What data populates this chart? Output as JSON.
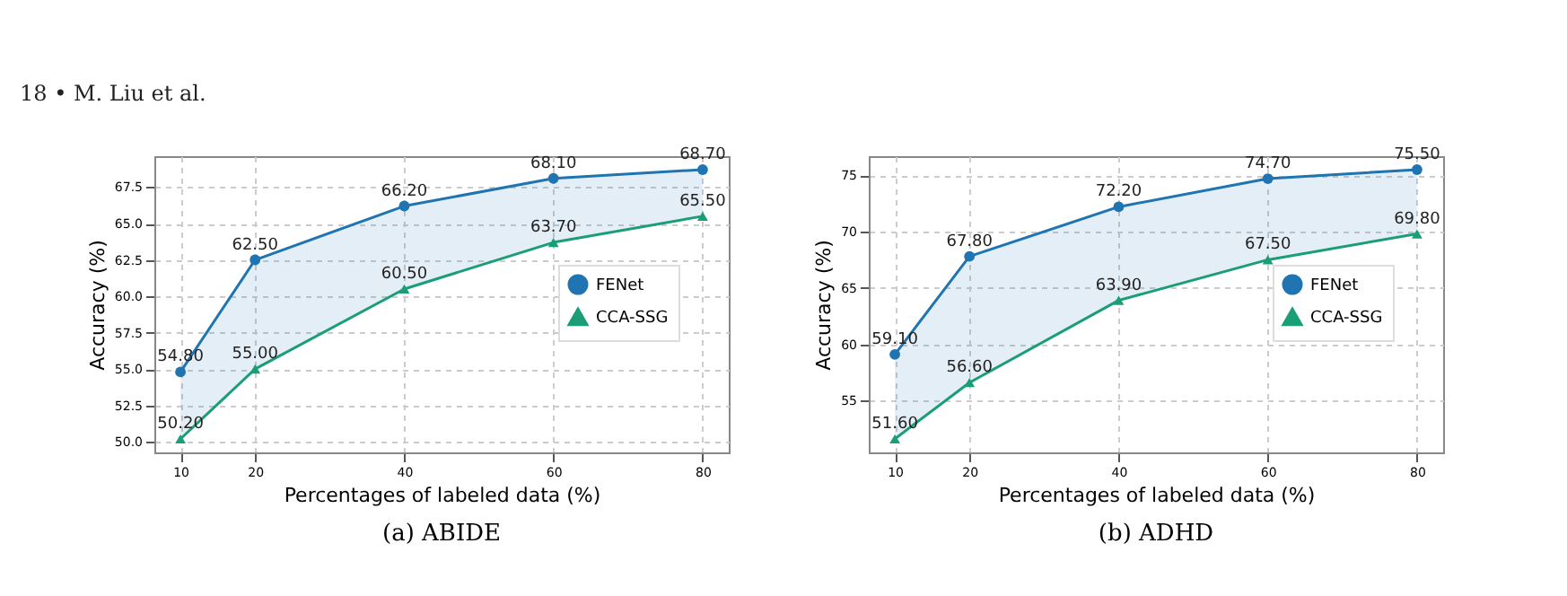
{
  "chart_data": [
    {
      "type": "line",
      "title": "(a) ABIDE",
      "xlabel": "Percentages of labeled data (%)",
      "ylabel": "Accuracy (%)",
      "annotations": [
        "18 • M. Liu et al."
      ],
      "x": [
        10,
        20,
        40,
        60,
        80
      ],
      "series": [
        {
          "name": "FENet",
          "color": "#1f74b1",
          "marker": "circle",
          "values": [
            54.8,
            62.5,
            66.2,
            68.1,
            68.7
          ],
          "value_labels": [
            "54.80",
            "62.50",
            "66.20",
            "68.10",
            "68.70"
          ],
          "lower": [
            50.2,
            55.0,
            60.5,
            63.7,
            65.5
          ],
          "upper": [
            54.8,
            62.5,
            66.2,
            68.1,
            68.7
          ]
        },
        {
          "name": "CCA-SSG",
          "color": "#1a9e77",
          "marker": "triangle",
          "values": [
            50.2,
            55.0,
            60.5,
            63.7,
            65.5
          ],
          "value_labels": [
            "50.20",
            "55.00",
            "60.50",
            "63.70",
            "65.50"
          ]
        }
      ],
      "xlim": [
        6.5,
        83.5
      ],
      "xticks": [
        10,
        20,
        40,
        60,
        80
      ],
      "ylim": [
        49.275,
        69.625
      ],
      "yticks": [
        {
          "value": 50,
          "label": "50.0"
        },
        52.5,
        {
          "value": 55,
          "label": "55.0"
        },
        57.5,
        {
          "value": 60,
          "label": "60.0"
        },
        62.5,
        {
          "value": 65,
          "label": "65.0"
        },
        67.5
      ],
      "grid": true,
      "legend": "right"
    },
    {
      "type": "line",
      "title": "(b) ADHD",
      "xlabel": "Percentages of labeled data (%)",
      "ylabel": "Accuracy (%)",
      "x": [
        10,
        20,
        40,
        60,
        80
      ],
      "series": [
        {
          "name": "FENet",
          "color": "#1f74b1",
          "marker": "circle",
          "values": [
            59.1,
            67.8,
            72.2,
            74.7,
            75.5
          ],
          "value_labels": [
            "59.10",
            "67.80",
            "72.20",
            "74.70",
            "75.50"
          ],
          "lower": [
            51.6,
            56.6,
            63.9,
            67.5,
            69.8
          ],
          "upper": [
            59.1,
            67.8,
            72.2,
            74.7,
            75.5
          ]
        },
        {
          "name": "CCA-SSG",
          "color": "#1a9e77",
          "marker": "triangle",
          "values": [
            51.6,
            56.6,
            63.9,
            67.5,
            69.8
          ],
          "value_labels": [
            "51.60",
            "56.60",
            "63.90",
            "67.50",
            "69.80"
          ]
        }
      ],
      "xlim": [
        6.5,
        83.5
      ],
      "xticks": [
        10,
        20,
        40,
        60,
        80
      ],
      "ylim": [
        50.405,
        76.695
      ],
      "yticks": [
        55,
        60,
        65,
        70,
        75
      ],
      "grid": true,
      "legend": "right"
    }
  ]
}
